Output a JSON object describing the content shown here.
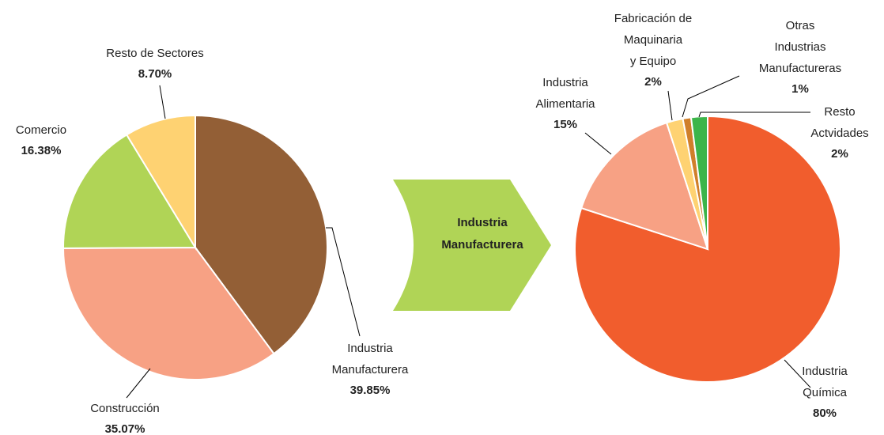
{
  "chart_data": [
    {
      "type": "pie",
      "categories": [
        "Industria\nManufacturera",
        "Construcción",
        "Comercio",
        "Resto de Sectores"
      ],
      "values": [
        39.85,
        35.07,
        16.38,
        8.7
      ],
      "value_labels": [
        "39.85%",
        "35.07%",
        "16.38%",
        "8.70%"
      ],
      "colors": [
        "#935f36",
        "#f7a184",
        "#b0d456",
        "#fed272"
      ]
    },
    {
      "type": "pie",
      "categories": [
        "Industria\nQuímica",
        "Industria\nAlimentaria",
        "Fabricación de\nMaquinaria\ny Equipo",
        "Otras\nIndustrias\nManufactureras",
        "Resto\nActvidades"
      ],
      "values": [
        80,
        15,
        2,
        1,
        2
      ],
      "value_labels": [
        "80%",
        "15%",
        "2%",
        "1%",
        "2%"
      ],
      "colors": [
        "#f15d2d",
        "#f7a184",
        "#fed272",
        "#d07f2a",
        "#3cb54a"
      ]
    }
  ],
  "arrow": {
    "label": "Industria\nManufacturera"
  }
}
